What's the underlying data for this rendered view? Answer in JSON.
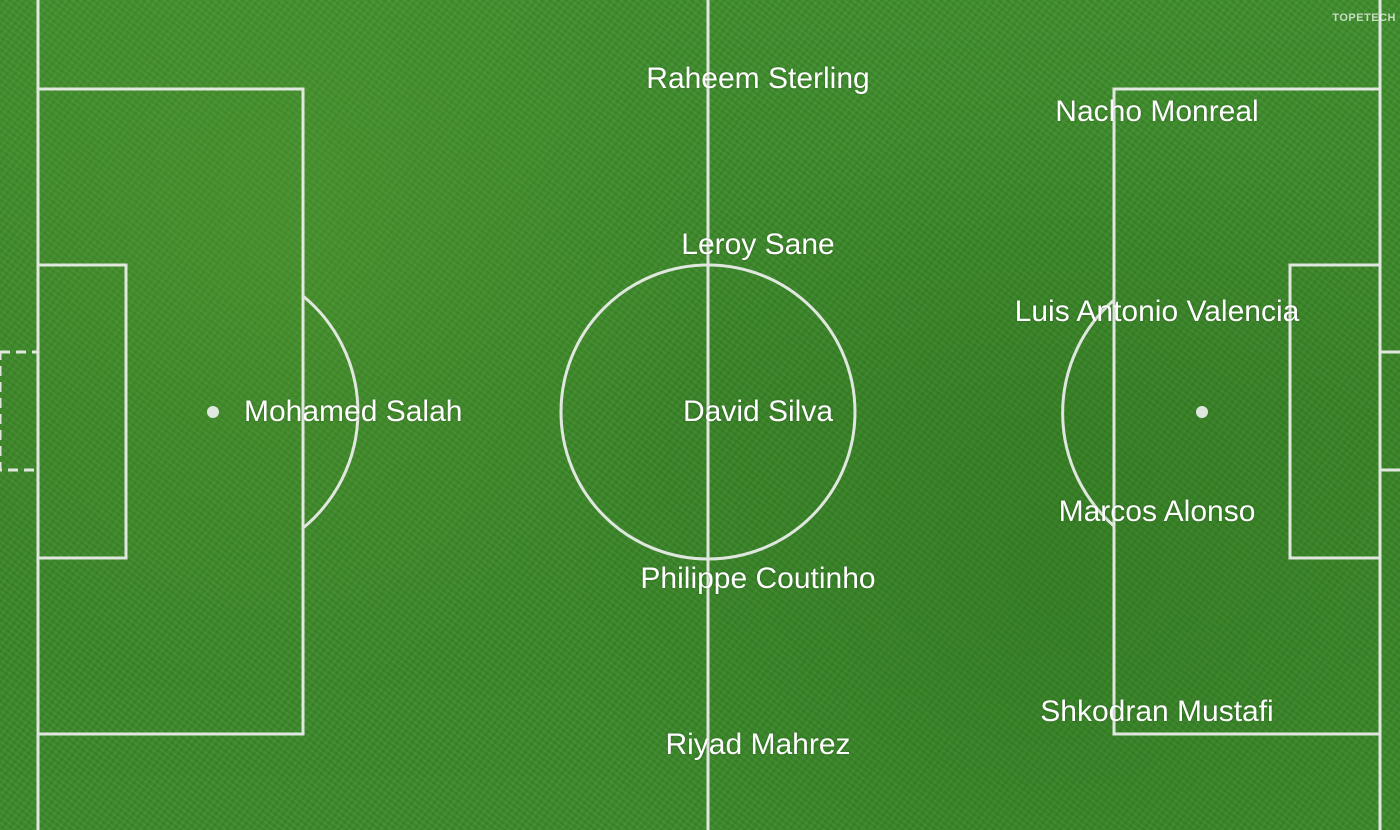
{
  "watermark": "TOPETECH",
  "players": {
    "raheem_sterling": "Raheem Sterling",
    "nacho_monreal": "Nacho Monreal",
    "leroy_sane": "Leroy Sane",
    "luis_antonio_valencia": "Luis Antonio Valencia",
    "mohamed_salah": "Mohamed Salah",
    "david_silva": "David Silva",
    "marcos_alonso": "Marcos Alonso",
    "philippe_coutinho": "Philippe Coutinho",
    "shkodran_mustafi": "Shkodran Mustafi",
    "riyad_mahrez": "Riyad Mahrez"
  },
  "colors": {
    "grass": "#3d8a2a",
    "lines": "#ffffff",
    "text": "#ffffff"
  }
}
